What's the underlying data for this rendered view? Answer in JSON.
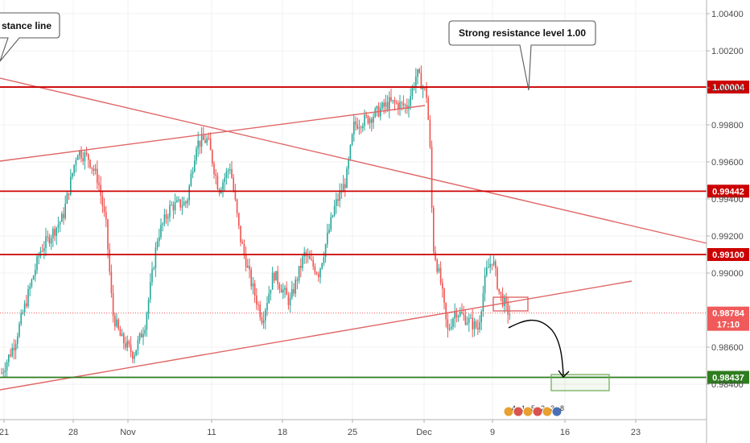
{
  "chart_data": {
    "type": "candlestick",
    "x_ticks": [
      "21",
      "28",
      "Nov",
      "11",
      "18",
      "25",
      "Dec",
      "9",
      "16",
      "23"
    ],
    "y_ticks": [
      "1.00400",
      "1.00200",
      "1.00000",
      "0.99800",
      "0.99600",
      "0.99400",
      "0.99200",
      "0.99000",
      "0.98600",
      "0.98400"
    ],
    "ylim": [
      0.9823,
      1.0046
    ],
    "horizontal_levels": [
      {
        "value": 1.00004,
        "label": "1.00004",
        "color": "#cc0000"
      },
      {
        "value": 0.99442,
        "label": "0.99442",
        "color": "#cc0000"
      },
      {
        "value": 0.991,
        "label": "0.99100",
        "color": "#cc0000"
      },
      {
        "value": 0.98437,
        "label": "0.98437",
        "color": "#2e7d1e"
      }
    ],
    "current_price": {
      "value": 0.98784,
      "label": "0.98784",
      "countdown": "17:10",
      "color": "#f05a5a"
    },
    "annotations": [
      {
        "text": "stance line"
      },
      {
        "text": "Strong resistance level 1.00"
      }
    ],
    "event_markers": [
      "4",
      "1",
      "5",
      "2",
      "3",
      "8"
    ],
    "colors": {
      "bull": "#26a69a",
      "bear": "#ef5350",
      "trend": "#e06666",
      "target_box": "#6aa84f"
    }
  }
}
